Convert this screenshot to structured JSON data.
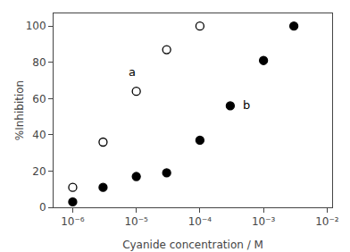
{
  "chart_data": {
    "type": "scatter",
    "xlabel": "Cyanide concentration / M",
    "ylabel": "%Inhibition",
    "log": "x",
    "grid": false,
    "xlim": [
      5e-07,
      0.012
    ],
    "ylim": [
      0,
      107
    ],
    "xticks": [
      {
        "value": 1e-06,
        "label": "10⁻⁶"
      },
      {
        "value": 1e-05,
        "label": "10⁻⁵"
      },
      {
        "value": 0.0001,
        "label": "10⁻⁴"
      },
      {
        "value": 0.001,
        "label": "10⁻³"
      },
      {
        "value": 0.01,
        "label": "10⁻²"
      }
    ],
    "yticks": [
      0,
      20,
      40,
      60,
      80,
      100
    ],
    "series": [
      {
        "x": [
          1e-06,
          3e-06,
          1e-05,
          3e-05,
          0.0001
        ],
        "values": [
          11,
          36,
          64,
          87,
          100
        ],
        "color": "black",
        "marker": "open-circle"
      },
      {
        "x": [
          1e-06,
          3e-06,
          1e-05,
          3e-05,
          0.0001,
          0.0003,
          0.001,
          0.003
        ],
        "values": [
          3,
          11,
          17,
          19,
          37,
          56,
          81,
          100
        ],
        "color": "black",
        "marker": "circle"
      }
    ],
    "annotations": [
      {
        "text": "a",
        "x": 7e-06,
        "y": 70
      },
      {
        "text": "b",
        "x": 0.00045,
        "y": 52
      }
    ]
  }
}
